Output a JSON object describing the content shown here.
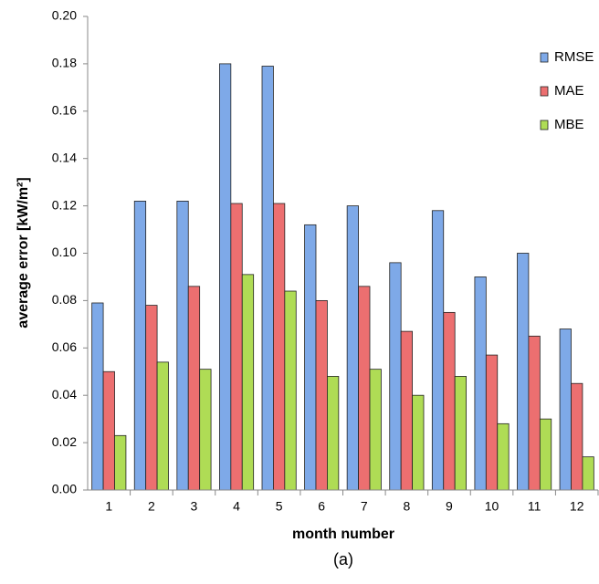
{
  "chart_data": {
    "type": "bar",
    "categories": [
      "1",
      "2",
      "3",
      "4",
      "5",
      "6",
      "7",
      "8",
      "9",
      "10",
      "11",
      "12"
    ],
    "series": [
      {
        "name": "RMSE",
        "color": "#7ea9e8",
        "values": [
          0.079,
          0.122,
          0.122,
          0.18,
          0.179,
          0.112,
          0.12,
          0.096,
          0.118,
          0.09,
          0.1,
          0.068
        ]
      },
      {
        "name": "MAE",
        "color": "#ec6f70",
        "values": [
          0.05,
          0.078,
          0.086,
          0.121,
          0.121,
          0.08,
          0.086,
          0.067,
          0.075,
          0.057,
          0.065,
          0.045
        ]
      },
      {
        "name": "MBE",
        "color": "#afdc55",
        "values": [
          0.023,
          0.054,
          0.051,
          0.091,
          0.084,
          0.048,
          0.051,
          0.04,
          0.048,
          0.028,
          0.03,
          0.014
        ]
      }
    ],
    "ylim": [
      0,
      0.2
    ],
    "yticks": [
      {
        "value": 0,
        "label": "0.00"
      },
      {
        "value": 0.02,
        "label": "0.02"
      },
      {
        "value": 0.04,
        "label": "0.04"
      },
      {
        "value": 0.06,
        "label": "0.06"
      },
      {
        "value": 0.08,
        "label": "0.08"
      },
      {
        "value": 0.1,
        "label": "0.10"
      },
      {
        "value": 0.12,
        "label": "0.12"
      },
      {
        "value": 0.14,
        "label": "0.14"
      },
      {
        "value": 0.16,
        "label": "0.16"
      },
      {
        "value": 0.18,
        "label": "0.18"
      },
      {
        "value": 0.2,
        "label": "0.20"
      }
    ],
    "y_label": "average error [kW/m²]",
    "x_label": "month number",
    "caption": "(a)",
    "grid": false,
    "legend": "top-right"
  }
}
